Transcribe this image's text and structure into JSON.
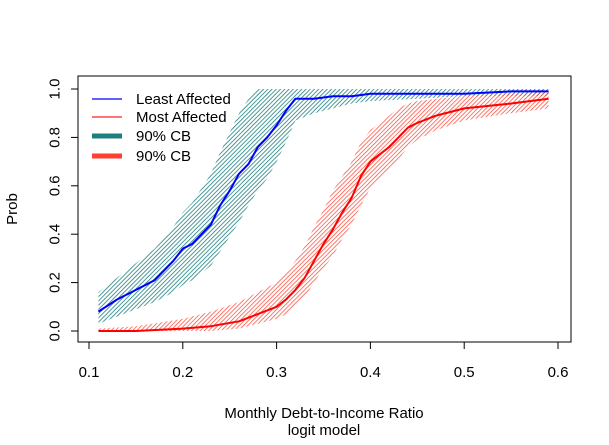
{
  "chart_data": {
    "type": "line",
    "title": "",
    "xlabel": "Monthly Debt-to-Income Ratio",
    "subtitle": "logit model",
    "ylabel": "Prob",
    "xlim": [
      0.1,
      0.6
    ],
    "ylim": [
      0.0,
      1.0
    ],
    "x_ticks": [
      "0.1",
      "0.2",
      "0.3",
      "0.4",
      "0.5",
      "0.6"
    ],
    "y_ticks": [
      "0.0",
      "0.2",
      "0.4",
      "0.6",
      "0.8",
      "1.0"
    ],
    "grid": false,
    "legend_position": "top-left",
    "legend": [
      {
        "label": "Least Affected",
        "color": "#0000ff",
        "style": "thin-line"
      },
      {
        "label": "Most Affected",
        "color": "#ff2020",
        "style": "thin-line"
      },
      {
        "label": "90% CB",
        "color": "#1f7f7f",
        "style": "thick-line"
      },
      {
        "label": "90% CB",
        "color": "#ff4030",
        "style": "thick-line"
      }
    ],
    "series": [
      {
        "name": "Least Affected",
        "color": "#0000ff",
        "band_color": "#1f7f7f",
        "x": [
          0.11,
          0.13,
          0.15,
          0.17,
          0.19,
          0.2,
          0.21,
          0.22,
          0.23,
          0.24,
          0.25,
          0.26,
          0.27,
          0.28,
          0.29,
          0.3,
          0.31,
          0.32,
          0.34,
          0.36,
          0.38,
          0.4,
          0.45,
          0.5,
          0.55,
          0.59
        ],
        "y": [
          0.08,
          0.13,
          0.17,
          0.21,
          0.29,
          0.34,
          0.36,
          0.4,
          0.44,
          0.52,
          0.58,
          0.65,
          0.69,
          0.76,
          0.8,
          0.85,
          0.91,
          0.96,
          0.96,
          0.97,
          0.97,
          0.98,
          0.98,
          0.98,
          0.99,
          0.99
        ],
        "lower": [
          0.03,
          0.06,
          0.09,
          0.12,
          0.16,
          0.19,
          0.21,
          0.24,
          0.27,
          0.33,
          0.39,
          0.45,
          0.52,
          0.58,
          0.63,
          0.7,
          0.78,
          0.87,
          0.9,
          0.92,
          0.94,
          0.95,
          0.96,
          0.97,
          0.97,
          0.97
        ],
        "upper": [
          0.16,
          0.22,
          0.28,
          0.34,
          0.43,
          0.49,
          0.53,
          0.59,
          0.65,
          0.74,
          0.82,
          0.9,
          0.96,
          1.0,
          1.0,
          1.0,
          1.0,
          1.0,
          1.0,
          1.0,
          1.0,
          1.0,
          1.0,
          1.0,
          1.0,
          1.0
        ]
      },
      {
        "name": "Most Affected",
        "color": "#ff0000",
        "band_color": "#ff4030",
        "x": [
          0.11,
          0.15,
          0.2,
          0.23,
          0.26,
          0.28,
          0.3,
          0.31,
          0.32,
          0.33,
          0.34,
          0.35,
          0.36,
          0.37,
          0.38,
          0.39,
          0.4,
          0.41,
          0.42,
          0.43,
          0.44,
          0.45,
          0.47,
          0.5,
          0.55,
          0.59
        ],
        "y": [
          0.0,
          0.0,
          0.01,
          0.02,
          0.04,
          0.07,
          0.1,
          0.13,
          0.17,
          0.22,
          0.29,
          0.36,
          0.42,
          0.49,
          0.55,
          0.64,
          0.7,
          0.73,
          0.76,
          0.8,
          0.84,
          0.86,
          0.89,
          0.92,
          0.94,
          0.96
        ],
        "lower": [
          0.0,
          0.0,
          0.0,
          0.0,
          0.01,
          0.03,
          0.05,
          0.07,
          0.1,
          0.14,
          0.2,
          0.26,
          0.31,
          0.38,
          0.44,
          0.52,
          0.59,
          0.63,
          0.67,
          0.71,
          0.76,
          0.79,
          0.83,
          0.87,
          0.9,
          0.92
        ],
        "upper": [
          0.01,
          0.02,
          0.05,
          0.08,
          0.12,
          0.16,
          0.2,
          0.24,
          0.29,
          0.35,
          0.43,
          0.5,
          0.58,
          0.64,
          0.7,
          0.78,
          0.83,
          0.86,
          0.89,
          0.92,
          0.94,
          0.95,
          0.96,
          0.97,
          0.98,
          0.99
        ]
      }
    ]
  }
}
